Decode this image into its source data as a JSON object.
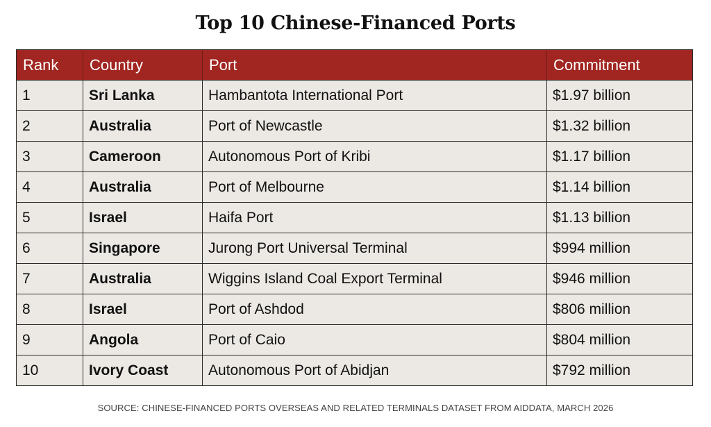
{
  "title": "Top 10 Chinese-Financed Ports",
  "table": {
    "headers": [
      "Rank",
      "Country",
      "Port",
      "Commitment"
    ],
    "rows": [
      {
        "rank": "1",
        "country": "Sri Lanka",
        "port": "Hambantota International Port",
        "commitment": "$1.97 billion"
      },
      {
        "rank": "2",
        "country": "Australia",
        "port": "Port of Newcastle",
        "commitment": "$1.32 billion"
      },
      {
        "rank": "3",
        "country": "Cameroon",
        "port": "Autonomous Port of Kribi",
        "commitment": "$1.17 billion"
      },
      {
        "rank": "4",
        "country": "Australia",
        "port": "Port of Melbourne",
        "commitment": "$1.14 billion"
      },
      {
        "rank": "5",
        "country": "Israel",
        "port": "Haifa Port",
        "commitment": "$1.13 billion"
      },
      {
        "rank": "6",
        "country": "Singapore",
        "port": "Jurong Port Universal Terminal",
        "commitment": "$994 million"
      },
      {
        "rank": "7",
        "country": "Australia",
        "port": "Wiggins Island Coal Export Terminal",
        "commitment": "$946 million"
      },
      {
        "rank": "8",
        "country": "Israel",
        "port": "Port of Ashdod",
        "commitment": "$806 million"
      },
      {
        "rank": "9",
        "country": "Angola",
        "port": "Port of Caio",
        "commitment": "$804 million"
      },
      {
        "rank": "10",
        "country": "Ivory Coast",
        "port": "Autonomous Port of Abidjan",
        "commitment": "$792 million"
      }
    ]
  },
  "source": "SOURCE: CHINESE-FINANCED PORTS OVERSEAS AND RELATED TERMINALS DATASET FROM AIDDATA, MARCH 2026",
  "colors": {
    "header_background": "#a12621",
    "row_background": "#ece9e4"
  }
}
